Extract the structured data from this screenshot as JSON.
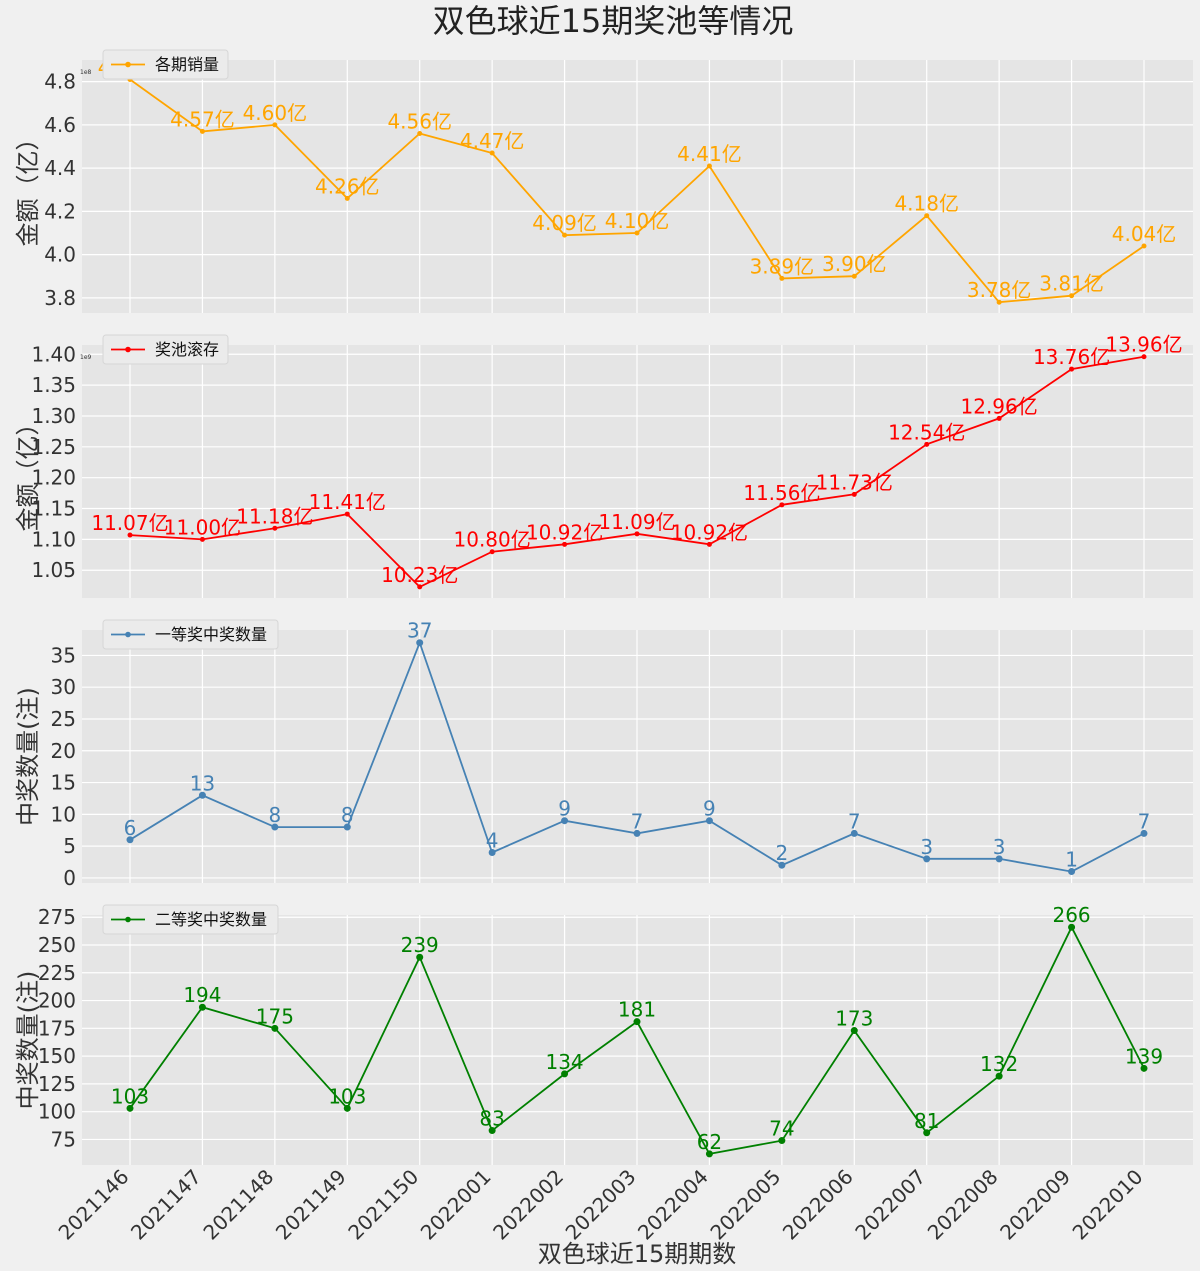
{
  "figure": {
    "title": "双色球近15期奖池等情况",
    "xlabel": "双色球近15期期数"
  },
  "chart_data": [
    {
      "type": "line",
      "legend": "各期销量",
      "ylabel": "金额（亿）",
      "offset_label": "1e8",
      "color": "#ffa500",
      "categories": [
        "2021146",
        "2021147",
        "2021148",
        "2021149",
        "2021150",
        "2022001",
        "2022002",
        "2022003",
        "2022004",
        "2022005",
        "2022006",
        "2022007",
        "2022008",
        "2022009",
        "2022010"
      ],
      "values": [
        481000000,
        457000000,
        460000000,
        426000000,
        456000000,
        447000000,
        409000000,
        410000000,
        441000000,
        389000000,
        390000000,
        418000000,
        378000000,
        381000000,
        404000000
      ],
      "data_labels": [
        "4.81亿",
        "4.57亿",
        "4.60亿",
        "4.26亿",
        "4.56亿",
        "4.47亿",
        "4.09亿",
        "4.10亿",
        "4.41亿",
        "3.89亿",
        "3.90亿",
        "4.18亿",
        "3.78亿",
        "3.81亿",
        "4.04亿"
      ],
      "ylim": [
        373000000,
        490000000
      ],
      "yticks": [
        380000000,
        400000000,
        420000000,
        440000000,
        460000000,
        480000000
      ],
      "ytick_labels": [
        "3.8",
        "4.0",
        "4.2",
        "4.4",
        "4.6",
        "4.8"
      ],
      "grid": true,
      "legend_position": "upper-left"
    },
    {
      "type": "line",
      "legend": "奖池滚存",
      "ylabel": "金额（亿）",
      "offset_label": "1e9",
      "color": "#ff0000",
      "categories": [
        "2021146",
        "2021147",
        "2021148",
        "2021149",
        "2021150",
        "2022001",
        "2022002",
        "2022003",
        "2022004",
        "2022005",
        "2022006",
        "2022007",
        "2022008",
        "2022009",
        "2022010"
      ],
      "values": [
        1107000000,
        1100000000,
        1118000000,
        1141000000,
        1023000000,
        1080000000,
        1092000000,
        1109000000,
        1092000000,
        1156000000,
        1173000000,
        1254000000,
        1296000000,
        1376000000,
        1396000000
      ],
      "data_labels": [
        "11.07亿",
        "11.00亿",
        "11.18亿",
        "11.41亿",
        "10.23亿",
        "10.80亿",
        "10.92亿",
        "11.09亿",
        "10.92亿",
        "11.56亿",
        "11.73亿",
        "12.54亿",
        "12.96亿",
        "13.76亿",
        "13.96亿"
      ],
      "ylim": [
        1005000000,
        1415000000
      ],
      "yticks": [
        1050000000,
        1100000000,
        1150000000,
        1200000000,
        1250000000,
        1300000000,
        1350000000,
        1400000000
      ],
      "ytick_labels": [
        "1.05",
        "1.10",
        "1.15",
        "1.20",
        "1.25",
        "1.30",
        "1.35",
        "1.40"
      ],
      "grid": true,
      "legend_position": "upper-left"
    },
    {
      "type": "line",
      "legend": "一等奖中奖数量",
      "ylabel": "中奖数量(注)",
      "color": "#4682b4",
      "categories": [
        "2021146",
        "2021147",
        "2021148",
        "2021149",
        "2021150",
        "2022001",
        "2022002",
        "2022003",
        "2022004",
        "2022005",
        "2022006",
        "2022007",
        "2022008",
        "2022009",
        "2022010"
      ],
      "values": [
        6,
        13,
        8,
        8,
        37,
        4,
        9,
        7,
        9,
        2,
        7,
        3,
        3,
        1,
        7
      ],
      "data_labels": [
        "6",
        "13",
        "8",
        "8",
        "37",
        "4",
        "9",
        "7",
        "9",
        "2",
        "7",
        "3",
        "3",
        "1",
        "7"
      ],
      "ylim": [
        -0.8,
        39
      ],
      "yticks": [
        0,
        5,
        10,
        15,
        20,
        25,
        30,
        35
      ],
      "ytick_labels": [
        "0",
        "5",
        "10",
        "15",
        "20",
        "25",
        "30",
        "35"
      ],
      "grid": true,
      "legend_position": "upper-left"
    },
    {
      "type": "line",
      "legend": "二等奖中奖数量",
      "ylabel": "中奖数量(注)",
      "color": "#008000",
      "categories": [
        "2021146",
        "2021147",
        "2021148",
        "2021149",
        "2021150",
        "2022001",
        "2022002",
        "2022003",
        "2022004",
        "2022005",
        "2022006",
        "2022007",
        "2022008",
        "2022009",
        "2022010"
      ],
      "values": [
        103,
        194,
        175,
        103,
        239,
        83,
        134,
        181,
        62,
        74,
        173,
        81,
        132,
        266,
        139
      ],
      "data_labels": [
        "103",
        "194",
        "175",
        "103",
        "239",
        "83",
        "134",
        "181",
        "62",
        "74",
        "173",
        "81",
        "132",
        "266",
        "139"
      ],
      "ylim": [
        52,
        277
      ],
      "yticks": [
        75,
        100,
        125,
        150,
        175,
        200,
        225,
        250,
        275
      ],
      "ytick_labels": [
        "75",
        "100",
        "125",
        "150",
        "175",
        "200",
        "225",
        "250",
        "275"
      ],
      "grid": true,
      "legend_position": "upper-left"
    }
  ]
}
